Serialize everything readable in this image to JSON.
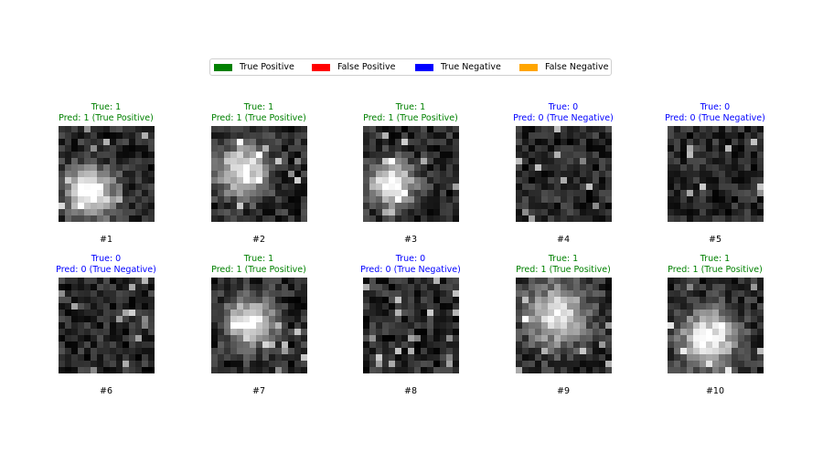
{
  "legend": {
    "entries": [
      {
        "label": "True Positive",
        "color": "#008000"
      },
      {
        "label": "False Positive",
        "color": "#ff0000"
      },
      {
        "label": "True Negative",
        "color": "#0000ff"
      },
      {
        "label": "False Negative",
        "color": "#ffa500"
      }
    ]
  },
  "chart_data": {
    "type": "heatmap",
    "colormap": "gray",
    "image_size": [
      15,
      15
    ],
    "panels": [
      {
        "index_label": "#1",
        "true_text": "True: 1",
        "pred_text": "Pred: 1 (True Positive)",
        "true": 1,
        "pred": 1,
        "outcome": "True Positive",
        "color": "#008000",
        "blob": {
          "cx": 4.5,
          "cy": 10.0,
          "sigma": 2.6,
          "amp": 0.95
        }
      },
      {
        "index_label": "#2",
        "true_text": "True: 1",
        "pred_text": "Pred: 1 (True Positive)",
        "true": 1,
        "pred": 1,
        "outcome": "True Positive",
        "color": "#008000",
        "blob": {
          "cx": 4.5,
          "cy": 6.5,
          "sigma": 2.7,
          "amp": 0.85
        }
      },
      {
        "index_label": "#3",
        "true_text": "True: 1",
        "pred_text": "Pred: 1 (True Positive)",
        "true": 1,
        "pred": 1,
        "outcome": "True Positive",
        "color": "#008000",
        "blob": {
          "cx": 4.0,
          "cy": 8.5,
          "sigma": 2.4,
          "amp": 0.9
        }
      },
      {
        "index_label": "#4",
        "true_text": "True: 0",
        "pred_text": "Pred: 0 (True Negative)",
        "true": 0,
        "pred": 0,
        "outcome": "True Negative",
        "color": "#0000ff",
        "blob": null
      },
      {
        "index_label": "#5",
        "true_text": "True: 0",
        "pred_text": "Pred: 0 (True Negative)",
        "true": 0,
        "pred": 0,
        "outcome": "True Negative",
        "color": "#0000ff",
        "blob": null
      },
      {
        "index_label": "#6",
        "true_text": "True: 0",
        "pred_text": "Pred: 0 (True Negative)",
        "true": 0,
        "pred": 0,
        "outcome": "True Negative",
        "color": "#0000ff",
        "blob": null
      },
      {
        "index_label": "#7",
        "true_text": "True: 1",
        "pred_text": "Pred: 1 (True Positive)",
        "true": 1,
        "pred": 1,
        "outcome": "True Positive",
        "color": "#008000",
        "blob": {
          "cx": 5.5,
          "cy": 6.5,
          "sigma": 2.5,
          "amp": 0.9
        }
      },
      {
        "index_label": "#8",
        "true_text": "True: 0",
        "pred_text": "Pred: 0 (True Negative)",
        "true": 0,
        "pred": 0,
        "outcome": "True Negative",
        "color": "#0000ff",
        "blob": null
      },
      {
        "index_label": "#9",
        "true_text": "True: 1",
        "pred_text": "Pred: 1 (True Positive)",
        "true": 1,
        "pred": 1,
        "outcome": "True Positive",
        "color": "#008000",
        "blob": {
          "cx": 6.0,
          "cy": 5.5,
          "sigma": 3.3,
          "amp": 0.75
        }
      },
      {
        "index_label": "#10",
        "true_text": "True: 1",
        "pred_text": "Pred: 1 (True Positive)",
        "true": 1,
        "pred": 1,
        "outcome": "True Positive",
        "color": "#008000",
        "blob": {
          "cx": 6.0,
          "cy": 9.0,
          "sigma": 3.0,
          "amp": 0.85
        }
      }
    ]
  }
}
